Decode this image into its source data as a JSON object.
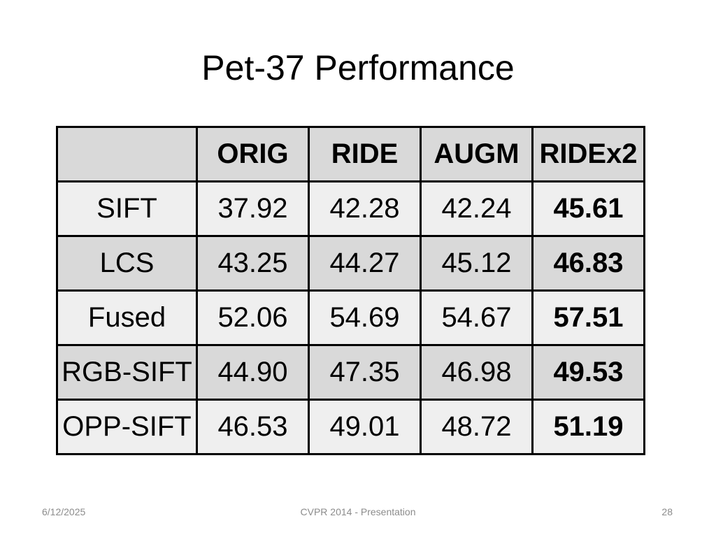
{
  "slide": {
    "title": "Pet-37 Performance",
    "footer": {
      "date": "6/12/2025",
      "center": "CVPR 2014 - Presentation",
      "page": "28"
    }
  },
  "table": {
    "columns": [
      "",
      "ORIG",
      "RIDE",
      "AUGM",
      "RIDEx2"
    ],
    "rows": [
      {
        "label": "SIFT",
        "values": [
          "37.92",
          "42.28",
          "42.24",
          "45.61"
        ]
      },
      {
        "label": "LCS",
        "values": [
          "43.25",
          "44.27",
          "45.12",
          "46.83"
        ]
      },
      {
        "label": "Fused",
        "values": [
          "52.06",
          "54.69",
          "54.67",
          "57.51"
        ]
      },
      {
        "label": "RGB-SIFT",
        "values": [
          "44.90",
          "47.35",
          "46.98",
          "49.53"
        ]
      },
      {
        "label": "OPP-SIFT",
        "values": [
          "46.53",
          "49.01",
          "48.72",
          "51.19"
        ]
      }
    ],
    "bold_column": "RIDEx2",
    "colors": {
      "shaded_row": "#d9d9d9",
      "light_row": "#efefef",
      "border": "#000000"
    }
  }
}
